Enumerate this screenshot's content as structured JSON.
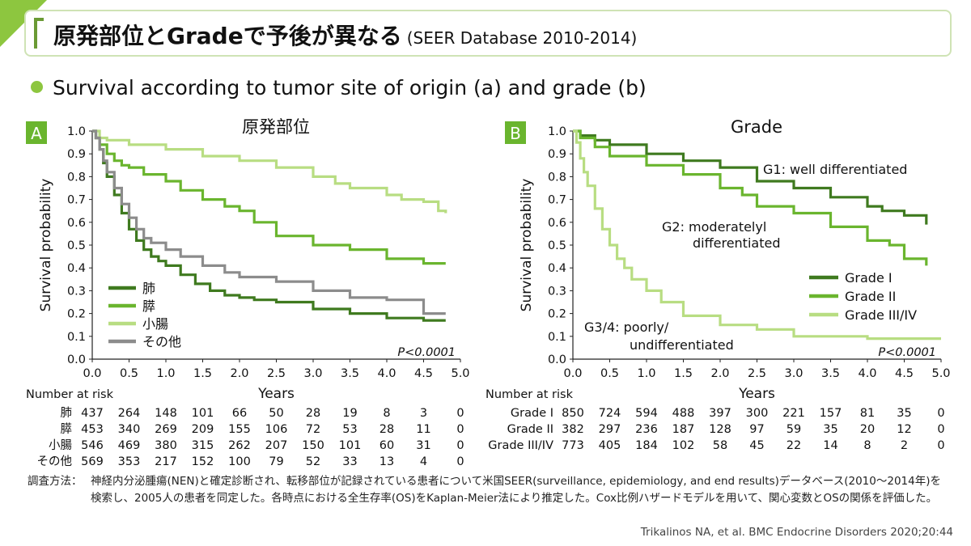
{
  "slide": {
    "title": "原発部位とGradeで予後が異なる",
    "title_sub": "(SEER Database 2010-2014)",
    "bullet": "Survival according to tumor site of origin (a) and grade (b)",
    "note_label": "調査方法：",
    "note_text": "神経内分泌腫瘍(NEN)と確定診断され、転移部位が記録されている患者について米国SEER(surveillance, epidemiology, and end results)データベース(2010〜2014年)を検索し、2005人の患者を同定した。各時点における全生存率(OS)をKaplan-Meier法により推定した。Cox比例ハザードモデルを用いて、関心変数とOSの関係を評価した。",
    "citation": "Trikalinos NA, et al. BMC Endocrine Disorders 2020;20:44"
  },
  "chart_data": [
    {
      "type": "line",
      "panel": "A",
      "title": "原発部位",
      "xlabel": "Years",
      "ylabel": "Survival probability",
      "xlim": [
        0,
        5
      ],
      "ylim": [
        0,
        1
      ],
      "xticks": [
        "0.0",
        "0.5",
        "1.0",
        "1.5",
        "2.0",
        "2.5",
        "3.0",
        "3.5",
        "4.0",
        "4.5",
        "5.0"
      ],
      "yticks": [
        "0.0",
        "0.1",
        "0.2",
        "0.3",
        "0.4",
        "0.5",
        "0.6",
        "0.7",
        "0.8",
        "0.9",
        "1.0"
      ],
      "pvalue": "P<0.0001",
      "legend_position": "bottom-left",
      "series": [
        {
          "name": "肺",
          "color": "#3f7a1f",
          "x": [
            0,
            0.05,
            0.1,
            0.15,
            0.2,
            0.3,
            0.4,
            0.5,
            0.6,
            0.7,
            0.8,
            0.9,
            1.0,
            1.2,
            1.4,
            1.6,
            1.8,
            2.0,
            2.2,
            2.5,
            3.0,
            3.5,
            4.0,
            4.5,
            4.8
          ],
          "y": [
            1,
            0.97,
            0.92,
            0.86,
            0.8,
            0.72,
            0.64,
            0.57,
            0.52,
            0.48,
            0.45,
            0.43,
            0.41,
            0.37,
            0.33,
            0.3,
            0.28,
            0.27,
            0.26,
            0.25,
            0.22,
            0.2,
            0.18,
            0.17,
            0.17
          ]
        },
        {
          "name": "膵",
          "color": "#6ab52e",
          "x": [
            0,
            0.05,
            0.1,
            0.2,
            0.3,
            0.4,
            0.5,
            0.7,
            1.0,
            1.2,
            1.5,
            1.8,
            2.0,
            2.2,
            2.5,
            3.0,
            3.5,
            4.0,
            4.5,
            4.8
          ],
          "y": [
            1,
            0.97,
            0.94,
            0.9,
            0.87,
            0.85,
            0.84,
            0.81,
            0.78,
            0.74,
            0.7,
            0.67,
            0.65,
            0.6,
            0.54,
            0.5,
            0.48,
            0.44,
            0.42,
            0.42
          ]
        },
        {
          "name": "小腸",
          "color": "#b8dd82",
          "x": [
            0,
            0.1,
            0.2,
            0.5,
            1.0,
            1.5,
            2.0,
            2.5,
            3.0,
            3.3,
            3.5,
            4.0,
            4.2,
            4.5,
            4.7,
            4.8
          ],
          "y": [
            1,
            0.97,
            0.96,
            0.94,
            0.92,
            0.89,
            0.87,
            0.84,
            0.8,
            0.77,
            0.75,
            0.72,
            0.7,
            0.69,
            0.65,
            0.64
          ]
        },
        {
          "name": "その他",
          "color": "#8c8c8c",
          "x": [
            0,
            0.05,
            0.1,
            0.15,
            0.2,
            0.3,
            0.4,
            0.5,
            0.6,
            0.7,
            0.8,
            1.0,
            1.2,
            1.5,
            1.8,
            2.0,
            2.5,
            3.0,
            3.5,
            4.0,
            4.4,
            4.5,
            4.8
          ],
          "y": [
            1,
            0.97,
            0.92,
            0.87,
            0.82,
            0.75,
            0.68,
            0.62,
            0.57,
            0.53,
            0.51,
            0.48,
            0.45,
            0.41,
            0.38,
            0.36,
            0.34,
            0.3,
            0.27,
            0.26,
            0.26,
            0.2,
            0.2
          ]
        }
      ],
      "risk_table": {
        "label": "Number at risk",
        "rows": [
          {
            "name": "肺",
            "values": [
              "437",
              "264",
              "148",
              "101",
              "66",
              "50",
              "28",
              "19",
              "8",
              "3",
              "0"
            ]
          },
          {
            "name": "膵",
            "values": [
              "453",
              "340",
              "269",
              "209",
              "155",
              "106",
              "72",
              "53",
              "28",
              "11",
              "0"
            ]
          },
          {
            "name": "小腸",
            "values": [
              "546",
              "469",
              "380",
              "315",
              "262",
              "207",
              "150",
              "101",
              "60",
              "31",
              "0"
            ]
          },
          {
            "name": "その他",
            "values": [
              "569",
              "353",
              "217",
              "152",
              "100",
              "79",
              "52",
              "33",
              "13",
              "4",
              "0"
            ]
          }
        ]
      }
    },
    {
      "type": "line",
      "panel": "B",
      "title": "Grade",
      "xlabel": "Years",
      "ylabel": "Survival probability",
      "xlim": [
        0,
        5
      ],
      "ylim": [
        0,
        1
      ],
      "xticks": [
        "0.0",
        "0.5",
        "1.0",
        "1.5",
        "2.0",
        "2.5",
        "3.0",
        "3.5",
        "4.0",
        "4.5",
        "5.0"
      ],
      "yticks": [
        "0.0",
        "0.1",
        "0.2",
        "0.3",
        "0.4",
        "0.5",
        "0.6",
        "0.7",
        "0.8",
        "0.9",
        "1.0"
      ],
      "pvalue": "P<0.0001",
      "legend_position": "right",
      "annotations": [
        {
          "text": "G1: well differentiated"
        },
        {
          "text": "G2: moderatelyl"
        },
        {
          "text": "differentiated"
        },
        {
          "text": "G3/4: poorly/"
        },
        {
          "text": "undifferentiated"
        }
      ],
      "series": [
        {
          "name": "Grade I",
          "color": "#3f7a1f",
          "x": [
            0,
            0.1,
            0.3,
            0.5,
            1.0,
            1.5,
            2.0,
            2.5,
            3.0,
            3.5,
            4.0,
            4.2,
            4.5,
            4.8
          ],
          "y": [
            1,
            0.98,
            0.96,
            0.94,
            0.9,
            0.87,
            0.84,
            0.78,
            0.75,
            0.71,
            0.67,
            0.65,
            0.63,
            0.59
          ]
        },
        {
          "name": "Grade II",
          "color": "#6ab52e",
          "x": [
            0,
            0.1,
            0.3,
            0.5,
            1.0,
            1.5,
            2.0,
            2.3,
            2.5,
            3.0,
            3.5,
            4.0,
            4.3,
            4.5,
            4.8
          ],
          "y": [
            1,
            0.97,
            0.93,
            0.89,
            0.85,
            0.81,
            0.75,
            0.72,
            0.67,
            0.64,
            0.58,
            0.52,
            0.5,
            0.44,
            0.41
          ]
        },
        {
          "name": "Grade III/IV",
          "color": "#b8dd82",
          "x": [
            0,
            0.05,
            0.1,
            0.15,
            0.2,
            0.3,
            0.4,
            0.5,
            0.6,
            0.7,
            0.8,
            1.0,
            1.2,
            1.5,
            2.0,
            2.5,
            3.0,
            4.0,
            5.0
          ],
          "y": [
            1,
            0.95,
            0.88,
            0.82,
            0.76,
            0.66,
            0.57,
            0.5,
            0.44,
            0.4,
            0.35,
            0.3,
            0.25,
            0.19,
            0.15,
            0.13,
            0.1,
            0.09,
            0.09
          ]
        }
      ],
      "risk_table": {
        "label": "Number at risk",
        "rows": [
          {
            "name": "Grade I",
            "values": [
              "850",
              "724",
              "594",
              "488",
              "397",
              "300",
              "221",
              "157",
              "81",
              "35",
              "0"
            ]
          },
          {
            "name": "Grade II",
            "values": [
              "382",
              "297",
              "236",
              "187",
              "128",
              "97",
              "59",
              "35",
              "20",
              "12",
              "0"
            ]
          },
          {
            "name": "Grade III/IV",
            "values": [
              "773",
              "405",
              "184",
              "102",
              "58",
              "45",
              "22",
              "14",
              "8",
              "2",
              "0"
            ]
          }
        ]
      }
    }
  ]
}
